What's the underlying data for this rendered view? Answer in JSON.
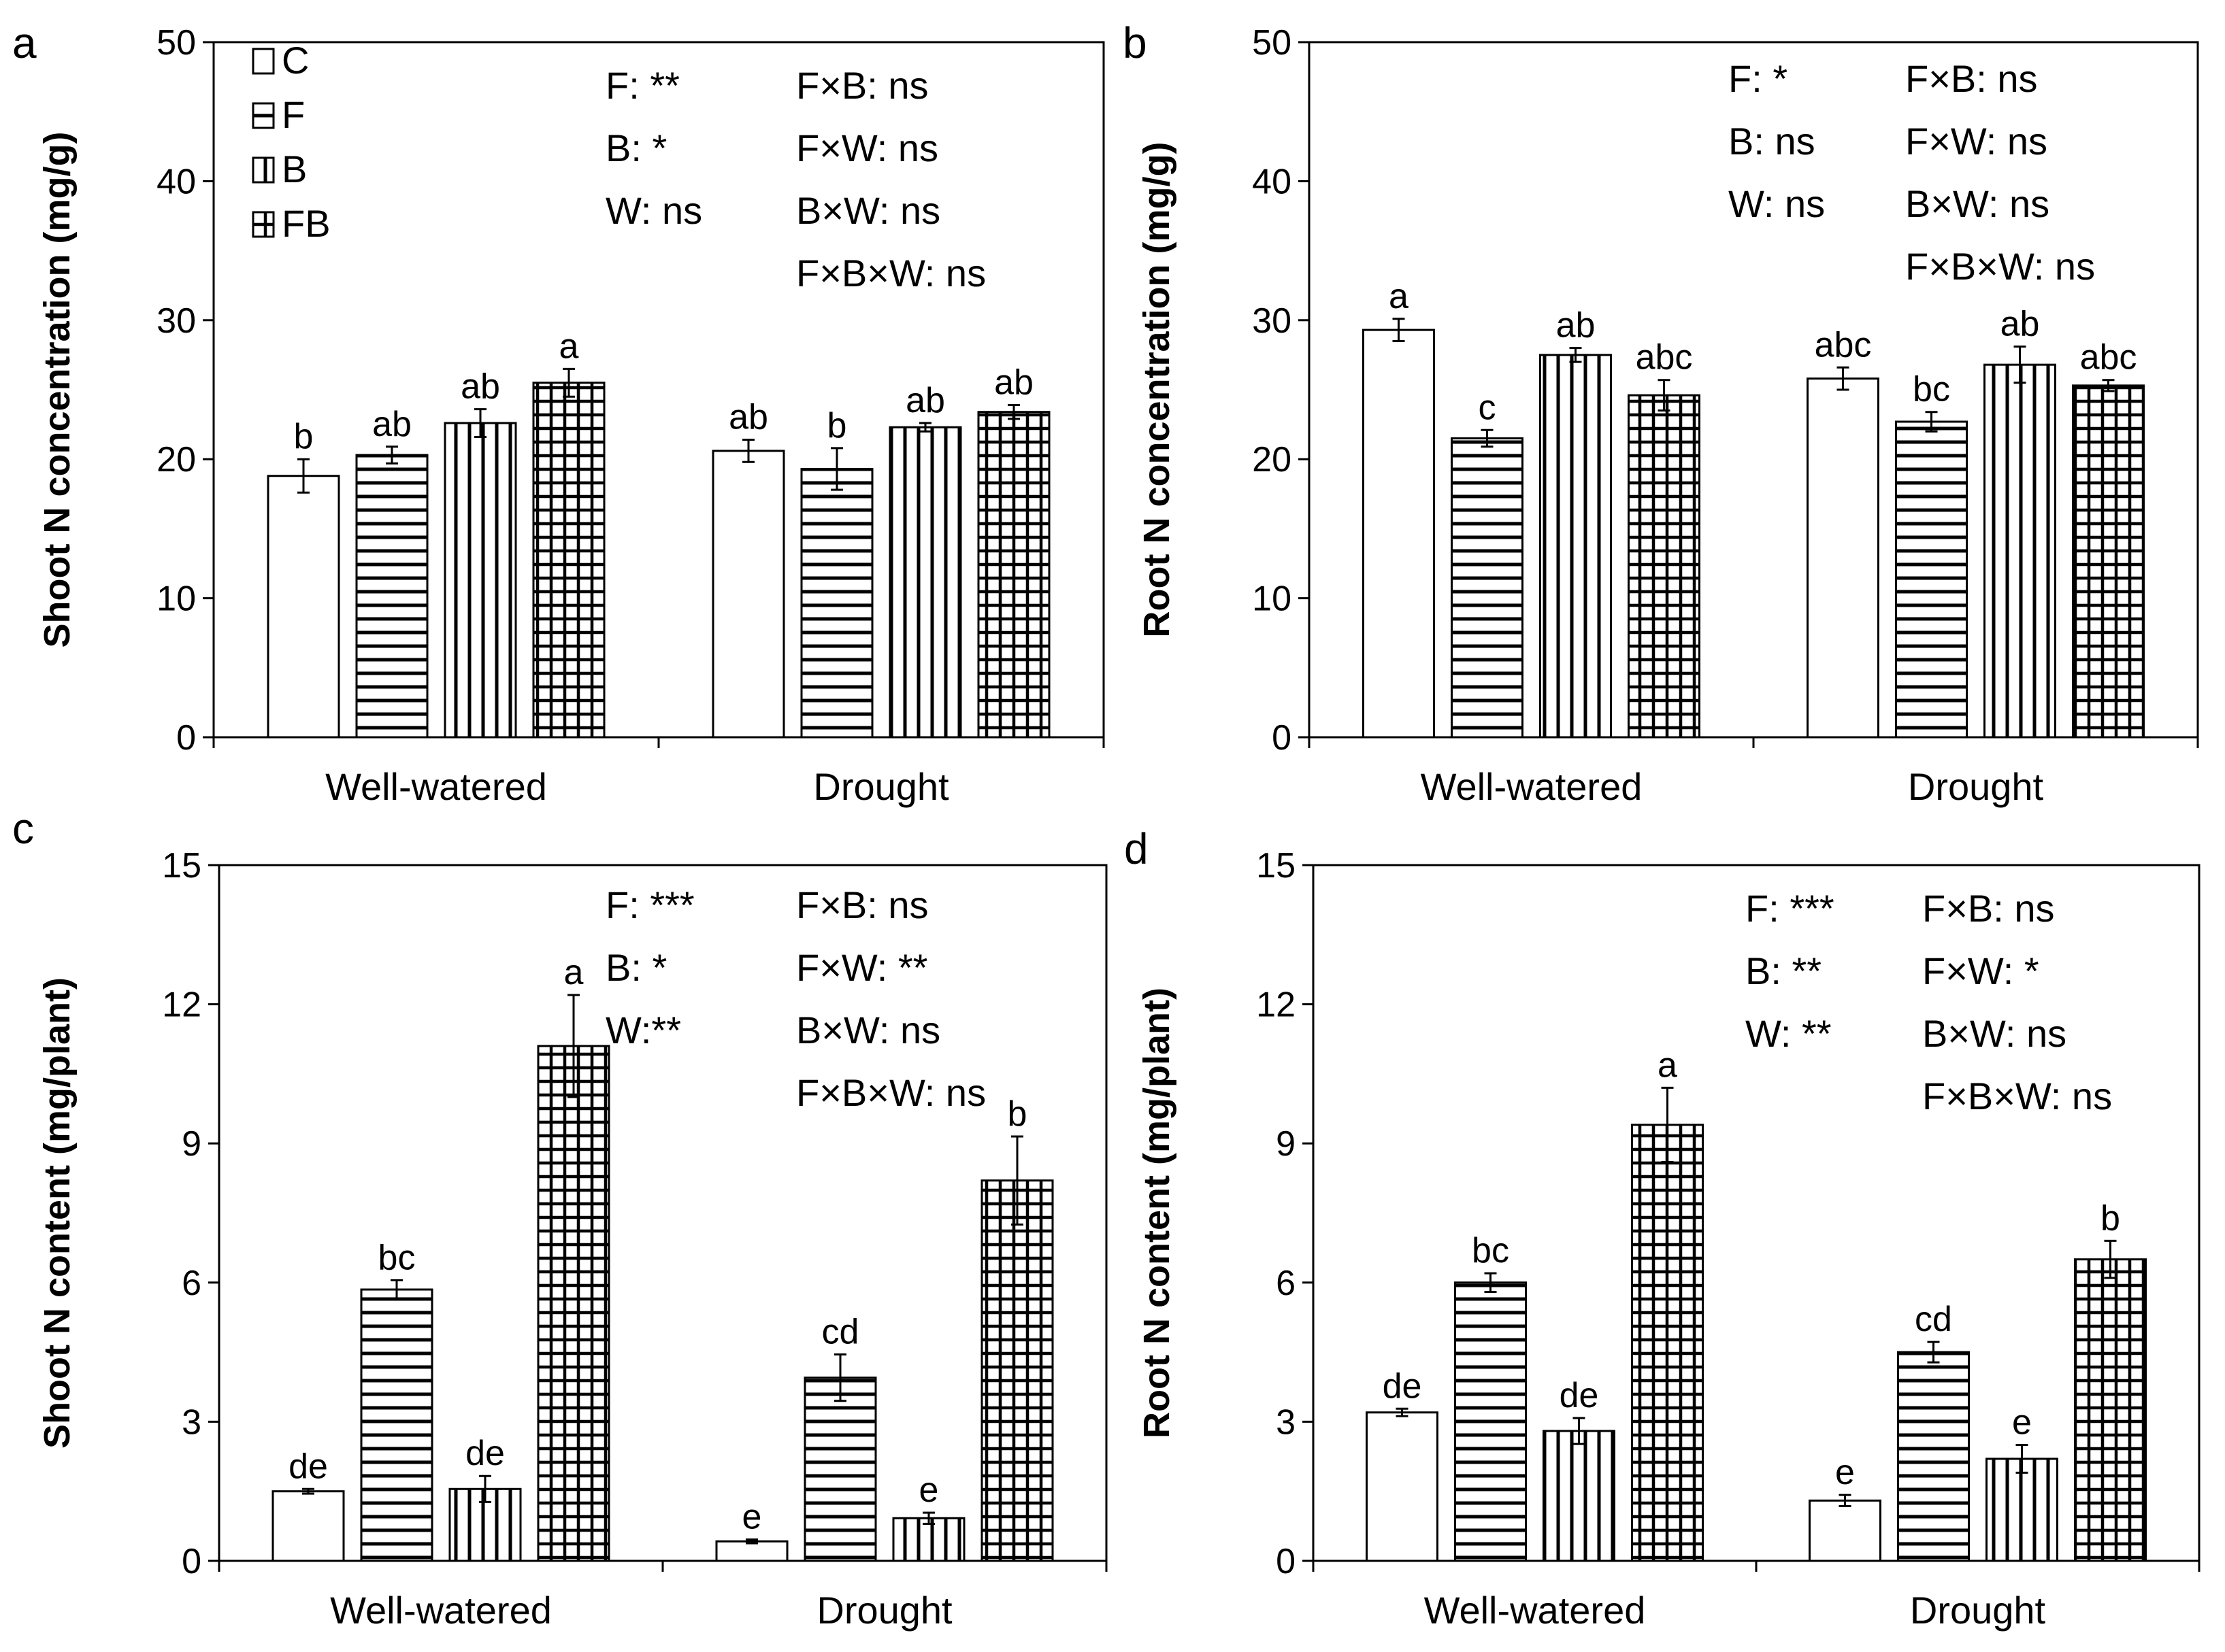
{
  "legend": [
    {
      "key": "C",
      "label": "C"
    },
    {
      "key": "F",
      "label": "F"
    },
    {
      "key": "B",
      "label": "B"
    },
    {
      "key": "FB",
      "label": "FB"
    }
  ],
  "chart_data": [
    {
      "panel": "a",
      "type": "bar",
      "title": "",
      "xlabel": "",
      "ylabel": "Shoot N concentration (mg/g)",
      "categories": [
        "Well-watered",
        "Drought"
      ],
      "ylim": [
        0,
        50
      ],
      "yticks": [
        "0",
        "10",
        "20",
        "30",
        "40",
        "50"
      ],
      "series": [
        {
          "name": "C",
          "values": [
            18.8,
            20.6
          ],
          "errors": [
            1.2,
            0.8
          ],
          "letters": [
            "b",
            "ab"
          ]
        },
        {
          "name": "F",
          "values": [
            20.3,
            19.3
          ],
          "errors": [
            0.6,
            1.5
          ],
          "letters": [
            "ab",
            "b"
          ]
        },
        {
          "name": "B",
          "values": [
            22.6,
            22.3
          ],
          "errors": [
            1.0,
            0.3
          ],
          "letters": [
            "ab",
            "ab"
          ]
        },
        {
          "name": "FB",
          "values": [
            25.5,
            23.4
          ],
          "errors": [
            1.0,
            0.5
          ],
          "letters": [
            "a",
            "ab"
          ]
        }
      ],
      "stats_left": [
        "F: **",
        "B: *",
        "W: ns"
      ],
      "stats_right": [
        "F×B: ns",
        "F×W: ns",
        "B×W: ns",
        "F×B×W: ns"
      ]
    },
    {
      "panel": "b",
      "type": "bar",
      "title": "",
      "xlabel": "",
      "ylabel": "Root N concentration (mg/g)",
      "categories": [
        "Well-watered",
        "Drought"
      ],
      "ylim": [
        0,
        50
      ],
      "yticks": [
        "0",
        "10",
        "20",
        "30",
        "40",
        "50"
      ],
      "series": [
        {
          "name": "C",
          "values": [
            29.3,
            25.8
          ],
          "errors": [
            0.8,
            0.8
          ],
          "letters": [
            "a",
            "abc"
          ]
        },
        {
          "name": "F",
          "values": [
            21.5,
            22.7
          ],
          "errors": [
            0.6,
            0.7
          ],
          "letters": [
            "c",
            "bc"
          ]
        },
        {
          "name": "B",
          "values": [
            27.5,
            26.8
          ],
          "errors": [
            0.5,
            1.3
          ],
          "letters": [
            "ab",
            "ab"
          ]
        },
        {
          "name": "FB",
          "values": [
            24.6,
            25.3
          ],
          "errors": [
            1.1,
            0.4
          ],
          "letters": [
            "abc",
            "abc"
          ]
        }
      ],
      "stats_left": [
        "F: *",
        "B: ns",
        "W: ns"
      ],
      "stats_right": [
        "F×B: ns",
        "F×W: ns",
        "B×W: ns",
        "F×B×W: ns"
      ]
    },
    {
      "panel": "c",
      "type": "bar",
      "title": "",
      "xlabel": "",
      "ylabel": "Shoot N content (mg/plant)",
      "categories": [
        "Well-watered",
        "Drought"
      ],
      "ylim": [
        0,
        15
      ],
      "yticks": [
        "0",
        "3",
        "6",
        "9",
        "12",
        "15"
      ],
      "series": [
        {
          "name": "C",
          "values": [
            1.5,
            0.42
          ],
          "errors": [
            0.05,
            0.04
          ],
          "letters": [
            "de",
            "e"
          ]
        },
        {
          "name": "F",
          "values": [
            5.85,
            3.95
          ],
          "errors": [
            0.2,
            0.5
          ],
          "letters": [
            "bc",
            "cd"
          ]
        },
        {
          "name": "B",
          "values": [
            1.55,
            0.92
          ],
          "errors": [
            0.28,
            0.12
          ],
          "letters": [
            "de",
            "e"
          ]
        },
        {
          "name": "FB",
          "values": [
            11.1,
            8.2
          ],
          "errors": [
            1.1,
            0.95
          ],
          "letters": [
            "a",
            "b"
          ]
        }
      ],
      "stats_left": [
        "F: ***",
        "B: *",
        "W:**"
      ],
      "stats_right": [
        "F×B: ns",
        "F×W: **",
        "B×W: ns",
        "F×B×W: ns"
      ]
    },
    {
      "panel": "d",
      "type": "bar",
      "title": "",
      "xlabel": "",
      "ylabel": "Root N content (mg/plant)",
      "categories": [
        "Well-watered",
        "Drought"
      ],
      "ylim": [
        0,
        15
      ],
      "yticks": [
        "0",
        "3",
        "6",
        "9",
        "12",
        "15"
      ],
      "series": [
        {
          "name": "C",
          "values": [
            3.2,
            1.3
          ],
          "errors": [
            0.08,
            0.12
          ],
          "letters": [
            "de",
            "e"
          ]
        },
        {
          "name": "F",
          "values": [
            6.0,
            4.5
          ],
          "errors": [
            0.2,
            0.22
          ],
          "letters": [
            "bc",
            "cd"
          ]
        },
        {
          "name": "B",
          "values": [
            2.8,
            2.2
          ],
          "errors": [
            0.28,
            0.3
          ],
          "letters": [
            "de",
            "e"
          ]
        },
        {
          "name": "FB",
          "values": [
            9.4,
            6.5
          ],
          "errors": [
            0.8,
            0.4
          ],
          "letters": [
            "a",
            "b"
          ]
        }
      ],
      "stats_left": [
        "F: ***",
        "B: **",
        "W: **"
      ],
      "stats_right": [
        "F×B: ns",
        "F×W: *",
        "B×W: ns",
        "F×B×W: ns"
      ]
    }
  ]
}
